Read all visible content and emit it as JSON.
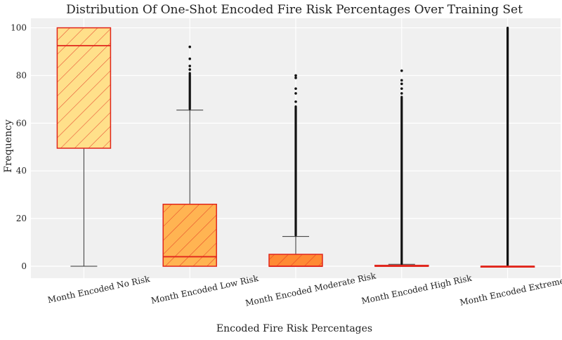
{
  "chart_data": {
    "type": "box",
    "title": "Distribution Of One-Shot Encoded Fire Risk Percentages Over Training Set",
    "xlabel": "Encoded Fire Risk Percentages",
    "ylabel": "Frequency",
    "ylim": [
      -5,
      104
    ],
    "yticks": [
      0,
      20,
      40,
      60,
      80,
      100
    ],
    "grid": true,
    "categories": [
      "Month Encoded No Risk",
      "Month Encoded Low Risk",
      "Month Encoded Moderate Risk",
      "Month Encoded High Risk",
      "Month Encoded Extreme Risk"
    ],
    "boxes": [
      {
        "q1": 49.5,
        "median": 92.5,
        "q3": 100,
        "whisker_low": 0,
        "whisker_high": 100,
        "outlier_range": null,
        "outliers": [],
        "fill": "#FFE08A"
      },
      {
        "q1": 0,
        "median": 4,
        "q3": 26,
        "whisker_low": 0,
        "whisker_high": 65.5,
        "outlier_range": [
          66,
          81
        ],
        "outliers": [
          82.5,
          84,
          87,
          92
        ],
        "fill": "#FFB452"
      },
      {
        "q1": 0,
        "median": 0,
        "q3": 5,
        "whisker_low": 0,
        "whisker_high": 12.5,
        "outlier_range": [
          13,
          67
        ],
        "outliers": [
          69,
          72.5,
          74.5,
          79,
          80
        ],
        "fill": "#FF8A33"
      },
      {
        "q1": 0,
        "median": 0,
        "q3": 0.4,
        "whisker_low": 0,
        "whisker_high": 0.8,
        "outlier_range": [
          1,
          71
        ],
        "outliers": [
          72.5,
          74.5,
          76.5,
          78,
          82
        ],
        "fill": "#E8342B"
      },
      {
        "q1": 0,
        "median": 0,
        "q3": 0,
        "whisker_low": 0,
        "whisker_high": 0,
        "outlier_range": [
          0.5,
          100
        ],
        "outliers": [],
        "fill": "#D93A2B"
      }
    ],
    "box_edge_color": "#E1261C",
    "median_color": "#E1261C",
    "whisker_color": "#333333",
    "outlier_color": "#111111",
    "background": "#F0F0F0"
  }
}
